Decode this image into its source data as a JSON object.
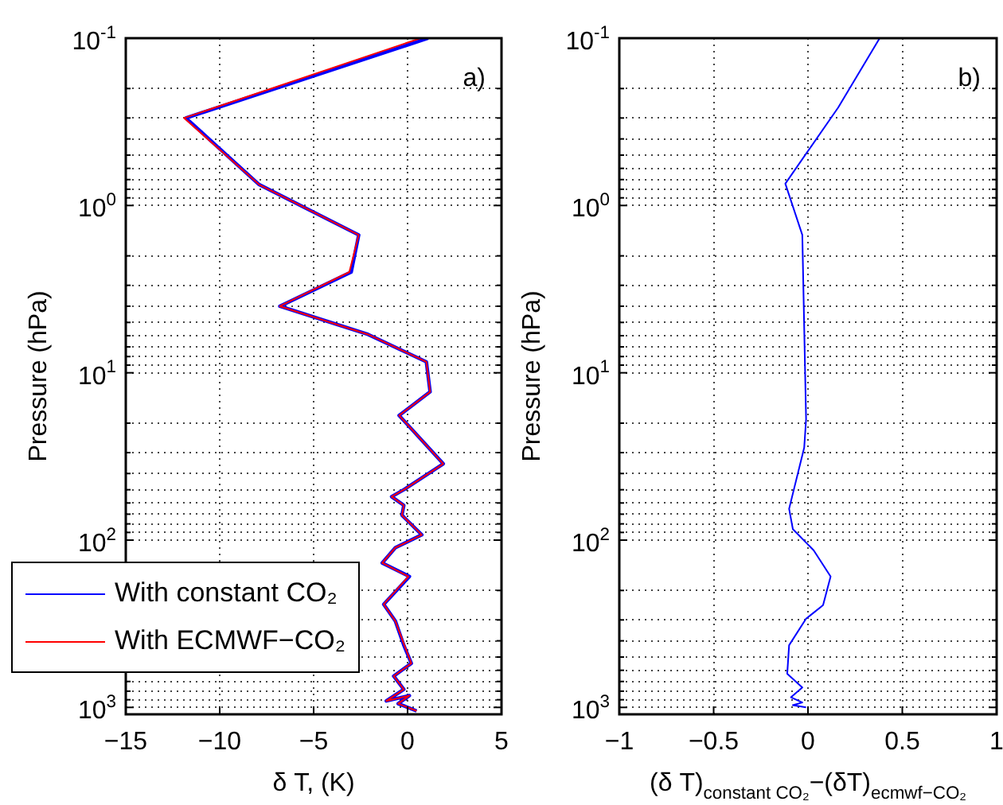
{
  "chart_data": [
    {
      "type": "line",
      "xlabel": "δ T, (K)",
      "ylabel": "Pressure (hPa)",
      "annotations": [
        "a)"
      ],
      "xlim": [
        -15,
        5
      ],
      "xticks": [
        {
          "value": -15,
          "label": "−15"
        },
        {
          "value": -10,
          "label": "−10"
        },
        {
          "value": -5,
          "label": "−5"
        },
        0,
        5
      ],
      "ylim": [
        1100,
        0.1
      ],
      "log": "y",
      "yticks": [
        {
          "value": 0.1,
          "label": "10$^{-1}$"
        },
        {
          "value": 0.2,
          "label": null
        },
        {
          "value": 0.3,
          "label": null
        },
        {
          "value": 0.4,
          "label": null
        },
        {
          "value": 0.5,
          "label": null
        },
        {
          "value": 0.6,
          "label": null
        },
        {
          "value": 0.7,
          "label": null
        },
        {
          "value": 0.8,
          "label": null
        },
        {
          "value": 0.9,
          "label": null
        },
        {
          "value": 1,
          "label": "10$^{0}$"
        },
        {
          "value": 2,
          "label": null
        },
        {
          "value": 3,
          "label": null
        },
        {
          "value": 4,
          "label": null
        },
        {
          "value": 5,
          "label": null
        },
        {
          "value": 6,
          "label": null
        },
        {
          "value": 7,
          "label": null
        },
        {
          "value": 8,
          "label": null
        },
        {
          "value": 9,
          "label": null
        },
        {
          "value": 10,
          "label": "10$^{1}$"
        },
        {
          "value": 20,
          "label": null
        },
        {
          "value": 30,
          "label": null
        },
        {
          "value": 40,
          "label": null
        },
        {
          "value": 50,
          "label": null
        },
        {
          "value": 60,
          "label": null
        },
        {
          "value": 70,
          "label": null
        },
        {
          "value": 80,
          "label": null
        },
        {
          "value": 90,
          "label": null
        },
        {
          "value": 100,
          "label": "10$^{2}$"
        },
        {
          "value": 200,
          "label": null
        },
        {
          "value": 300,
          "label": null
        },
        {
          "value": 400,
          "label": null
        },
        {
          "value": 500,
          "label": null
        },
        {
          "value": 600,
          "label": null
        },
        {
          "value": 700,
          "label": null
        },
        {
          "value": 800,
          "label": null
        },
        {
          "value": 900,
          "label": null
        },
        {
          "value": 1000,
          "label": "10$^{3}$"
        }
      ],
      "grid": true,
      "legend": "bottom left",
      "line_style": "solid",
      "series": [
        {
          "name": "With constant CO₂",
          "color": "#0000ff",
          "x": [
            1.1,
            -11.8,
            -7.9,
            -2.6,
            -3.0,
            -6.8,
            -2.1,
            1.0,
            1.2,
            -0.45,
            1.9,
            -0.2,
            -0.85,
            -0.2,
            -0.3,
            0.76,
            -0.65,
            -1.35,
            0.1,
            -1.27,
            -0.65,
            -0.2,
            0.2,
            -0.74,
            -0.2,
            -1.13,
            0.1,
            -0.5,
            0.48
          ],
          "values": [
            0.1,
            0.3,
            0.75,
            1.5,
            2.5,
            4,
            5.9,
            8.6,
            13,
            18,
            35,
            50,
            55,
            62,
            71,
            93,
            111,
            137,
            165,
            242,
            305,
            425,
            545,
            650,
            780,
            915,
            850,
            950,
            1050
          ]
        },
        {
          "name": "With ECMWF−CO₂",
          "color": "#ff0000",
          "x": [
            0.7,
            -11.9,
            -7.9,
            -2.6,
            -3.1,
            -6.8,
            -2.1,
            1.0,
            1.2,
            -0.45,
            1.9,
            -0.2,
            -0.85,
            -0.2,
            -0.3,
            0.76,
            -0.65,
            -1.35,
            0.05,
            -1.27,
            -0.65,
            -0.17,
            0.2,
            -0.74,
            -0.2,
            -1.13,
            0.1,
            -0.5,
            0.48
          ],
          "values": [
            0.1,
            0.3,
            0.75,
            1.5,
            2.5,
            4,
            5.9,
            8.6,
            13,
            18,
            35,
            50,
            55,
            62,
            71,
            93,
            111,
            137,
            165,
            242,
            305,
            425,
            545,
            650,
            780,
            915,
            850,
            950,
            1050
          ]
        }
      ]
    },
    {
      "type": "line",
      "xlabel": "(δ T)$_{constant CO₂}$−(δT)$_{ecmwf−CO₂}$",
      "ylabel": "Pressure (hPa)",
      "annotations": [
        "b)"
      ],
      "xlim": [
        -1,
        1
      ],
      "xticks": [
        {
          "value": -1,
          "label": "−1"
        },
        {
          "value": -0.5,
          "label": "−0.5"
        },
        0,
        0.5,
        1
      ],
      "ylim": [
        1100,
        0.1
      ],
      "log": "y",
      "yticks": [
        {
          "value": 0.1,
          "label": "10$^{-1}$"
        },
        {
          "value": 0.2,
          "label": null
        },
        {
          "value": 0.3,
          "label": null
        },
        {
          "value": 0.4,
          "label": null
        },
        {
          "value": 0.5,
          "label": null
        },
        {
          "value": 0.6,
          "label": null
        },
        {
          "value": 0.7,
          "label": null
        },
        {
          "value": 0.8,
          "label": null
        },
        {
          "value": 0.9,
          "label": null
        },
        {
          "value": 1,
          "label": "10$^{0}$"
        },
        {
          "value": 2,
          "label": null
        },
        {
          "value": 3,
          "label": null
        },
        {
          "value": 4,
          "label": null
        },
        {
          "value": 5,
          "label": null
        },
        {
          "value": 6,
          "label": null
        },
        {
          "value": 7,
          "label": null
        },
        {
          "value": 8,
          "label": null
        },
        {
          "value": 9,
          "label": null
        },
        {
          "value": 10,
          "label": "10$^{1}$"
        },
        {
          "value": 20,
          "label": null
        },
        {
          "value": 30,
          "label": null
        },
        {
          "value": 40,
          "label": null
        },
        {
          "value": 50,
          "label": null
        },
        {
          "value": 60,
          "label": null
        },
        {
          "value": 70,
          "label": null
        },
        {
          "value": 80,
          "label": null
        },
        {
          "value": 90,
          "label": null
        },
        {
          "value": 100,
          "label": "10$^{2}$"
        },
        {
          "value": 200,
          "label": null
        },
        {
          "value": 300,
          "label": null
        },
        {
          "value": 400,
          "label": null
        },
        {
          "value": 500,
          "label": null
        },
        {
          "value": 600,
          "label": null
        },
        {
          "value": 700,
          "label": null
        },
        {
          "value": 800,
          "label": null
        },
        {
          "value": 900,
          "label": null
        },
        {
          "value": 1000,
          "label": "10$^{3}$"
        }
      ],
      "grid": true,
      "line_style": "solid",
      "series": [
        {
          "color": "#0000ff",
          "x": [
            0.38,
            0.16,
            -0.12,
            -0.03,
            -0.01,
            -0.02,
            -0.1,
            -0.08,
            0.03,
            0.12,
            0.08,
            -0.01,
            -0.1,
            -0.11,
            -0.03,
            -0.09,
            -0.03,
            -0.08,
            -0.01
          ],
          "values": [
            0.1,
            0.26,
            0.74,
            1.5,
            19,
            28,
            65,
            86,
            115,
            165,
            245,
            295,
            425,
            630,
            760,
            870,
            935,
            970,
            1000
          ]
        }
      ]
    }
  ]
}
